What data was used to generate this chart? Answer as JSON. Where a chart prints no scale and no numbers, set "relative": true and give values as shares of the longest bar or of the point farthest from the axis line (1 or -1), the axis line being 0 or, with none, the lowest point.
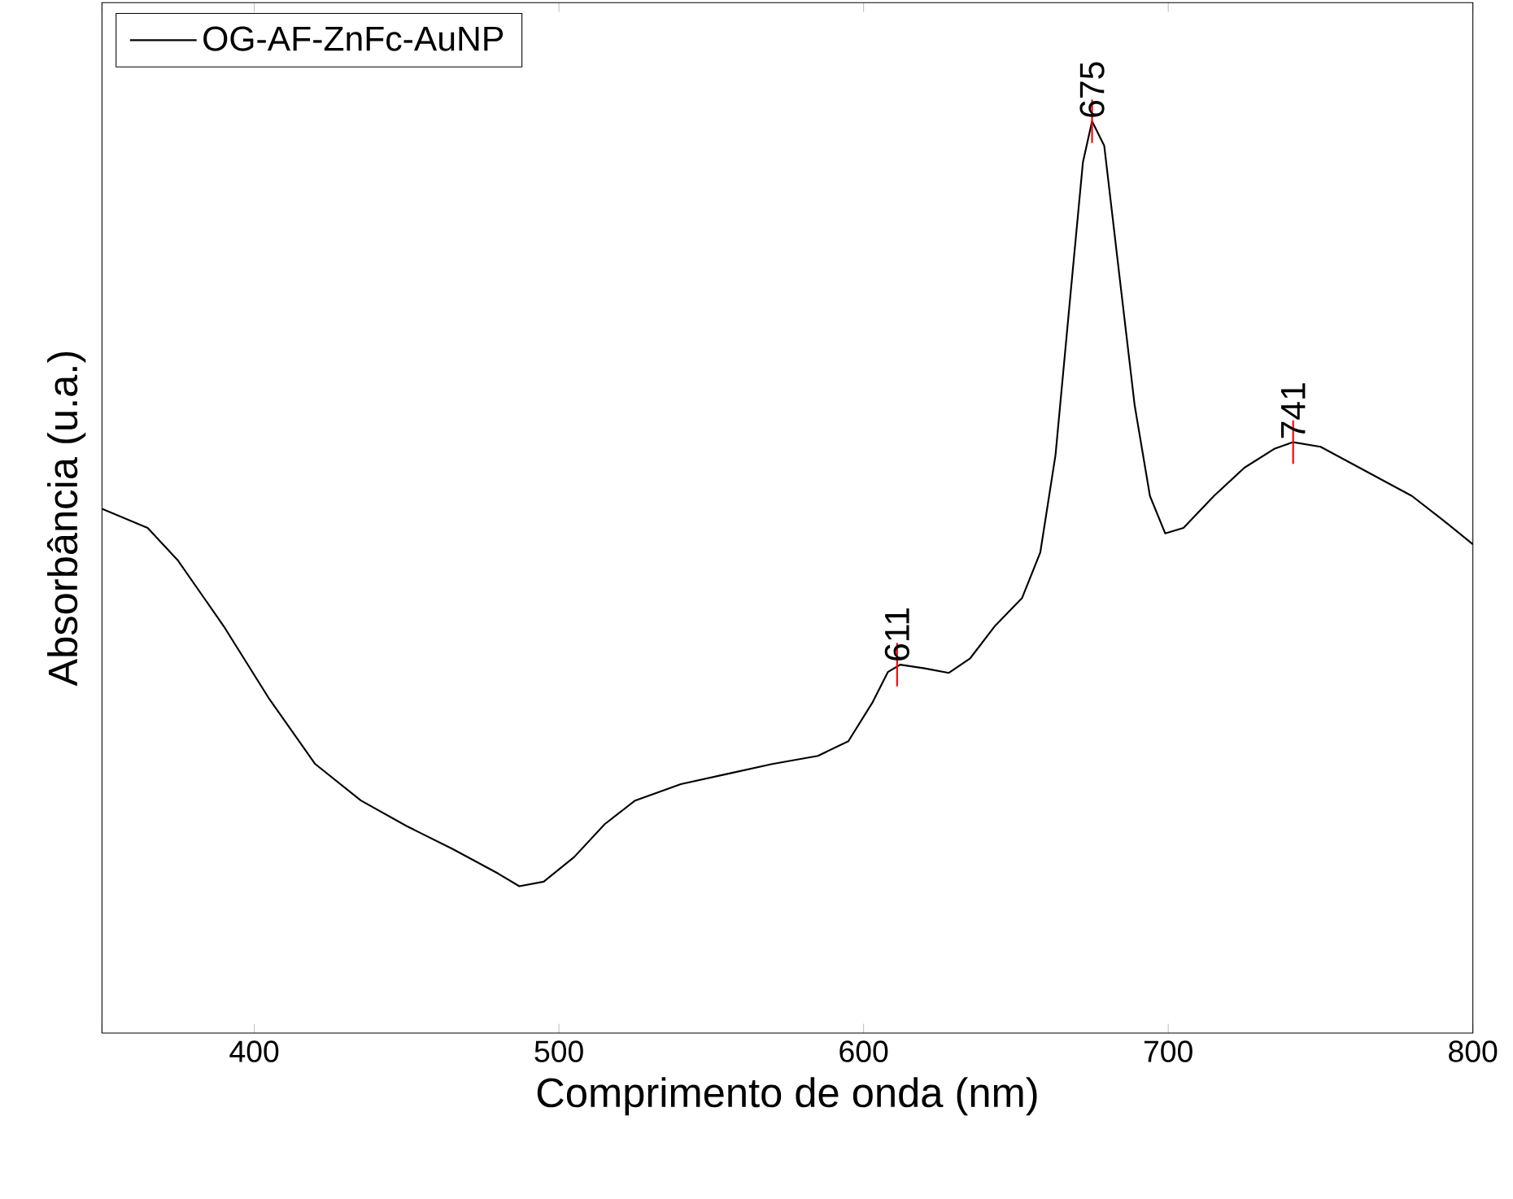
{
  "chart_data": {
    "type": "line",
    "relative": true,
    "xlabel": "Comprimento de onda (nm)",
    "ylabel": "Absorbância (u.a.)",
    "xlim": [
      350,
      800
    ],
    "xticks": [
      {
        "value": 350,
        "label": null
      },
      400,
      500,
      600,
      700,
      800
    ],
    "legend": "top left",
    "tick_labels": "x",
    "series": [
      {
        "name": "OG-AF-ZnFc-AuNP",
        "color": "#000000",
        "x": [
          350,
          365,
          375,
          390,
          405,
          420,
          435,
          450,
          465,
          480,
          487,
          495,
          505,
          515,
          525,
          540,
          555,
          570,
          585,
          595,
          603,
          608,
          612,
          620,
          628,
          635,
          643,
          652,
          658,
          663,
          668,
          672,
          675,
          679,
          684,
          689,
          694,
          699,
          705,
          715,
          725,
          735,
          741,
          750,
          765,
          780,
          790,
          800
        ],
        "values": [
          0.575,
          0.554,
          0.518,
          0.446,
          0.366,
          0.295,
          0.255,
          0.227,
          0.202,
          0.175,
          0.161,
          0.166,
          0.193,
          0.229,
          0.255,
          0.273,
          0.284,
          0.295,
          0.304,
          0.32,
          0.363,
          0.396,
          0.404,
          0.4,
          0.395,
          0.411,
          0.446,
          0.477,
          0.527,
          0.634,
          0.813,
          0.955,
          1.0,
          0.973,
          0.83,
          0.688,
          0.589,
          0.548,
          0.554,
          0.589,
          0.62,
          0.641,
          0.648,
          0.643,
          0.616,
          0.589,
          0.563,
          0.536
        ]
      }
    ],
    "annotations": [
      {
        "text": "611",
        "x": 611,
        "y": 0.404
      },
      {
        "text": "675",
        "x": 675,
        "y": 1.0
      },
      {
        "text": "741",
        "x": 741,
        "y": 0.648
      }
    ]
  }
}
